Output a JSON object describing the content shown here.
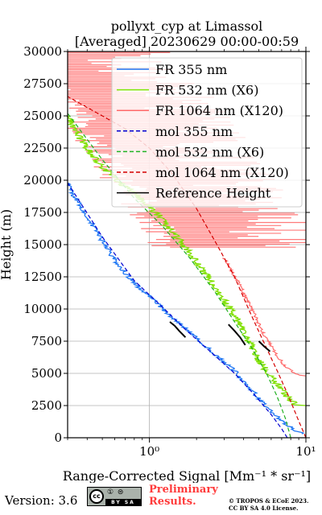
{
  "chart_data": {
    "type": "line",
    "title": "pollyxt_cyp at Limassol",
    "subtitle": "[Averaged] 20230629 00:00-00:59",
    "xlabel": "Range-Corrected Signal [Mm⁻¹ * sr⁻¹]",
    "ylabel": "Height (m)",
    "xscale": "log",
    "xlim": [
      0.3,
      10
    ],
    "ylim": [
      0,
      30000
    ],
    "x_ticks": [
      "10⁰",
      "10¹"
    ],
    "y_ticks": [
      "0",
      "2500",
      "5000",
      "7500",
      "10000",
      "12500",
      "15000",
      "17500",
      "20000",
      "22500",
      "25000",
      "27500",
      "30000"
    ],
    "grid": true,
    "legend_position": "upper right",
    "series": [
      {
        "name": "FR 355 nm",
        "color": "#1f77f4",
        "style": "solid",
        "points": [
          [
            0.3,
            19800
          ],
          [
            0.32,
            19000
          ],
          [
            0.35,
            18300
          ],
          [
            0.4,
            17200
          ],
          [
            0.5,
            15300
          ],
          [
            0.6,
            13800
          ],
          [
            0.8,
            12000
          ],
          [
            1.0,
            11000
          ],
          [
            1.3,
            9700
          ],
          [
            1.7,
            8500
          ],
          [
            2.2,
            7300
          ],
          [
            2.8,
            6200
          ],
          [
            3.5,
            5200
          ],
          [
            4.3,
            4000
          ],
          [
            5.2,
            2800
          ],
          [
            6.3,
            1800
          ],
          [
            7.5,
            1000
          ],
          [
            8.5,
            600
          ],
          [
            9.5,
            300
          ]
        ]
      },
      {
        "name": "FR 532 nm (X6)",
        "color": "#7fe000",
        "style": "solid",
        "points": [
          [
            0.3,
            25000
          ],
          [
            0.33,
            24000
          ],
          [
            0.4,
            22500
          ],
          [
            0.5,
            21000
          ],
          [
            0.7,
            19500
          ],
          [
            0.9,
            18500
          ],
          [
            1.1,
            17500
          ],
          [
            1.4,
            16000
          ],
          [
            1.7,
            14800
          ],
          [
            2.1,
            13300
          ],
          [
            2.6,
            11800
          ],
          [
            3.2,
            10200
          ],
          [
            3.8,
            8800
          ],
          [
            4.4,
            7300
          ],
          [
            5.0,
            6000
          ],
          [
            5.8,
            5000
          ],
          [
            6.8,
            4000
          ],
          [
            7.6,
            3200
          ],
          [
            8.5,
            2600
          ],
          [
            9.8,
            2500
          ]
        ]
      },
      {
        "name": "FR 1064 nm (X120)",
        "color": "#ff6b6b",
        "style": "solid",
        "points": [
          [
            0.3,
            29500
          ],
          [
            0.4,
            28000
          ],
          [
            0.55,
            26500
          ],
          [
            0.7,
            25000
          ],
          [
            0.9,
            23500
          ],
          [
            1.1,
            22000
          ],
          [
            1.4,
            20000
          ],
          [
            1.8,
            18200
          ],
          [
            2.3,
            16200
          ],
          [
            3.0,
            14000
          ],
          [
            3.8,
            11800
          ],
          [
            4.6,
            9800
          ],
          [
            5.3,
            8200
          ],
          [
            6.2,
            6800
          ],
          [
            7.3,
            5600
          ],
          [
            8.8,
            4900
          ],
          [
            10,
            4800
          ]
        ]
      },
      {
        "name": "mol 355 nm",
        "color": "#0000d0",
        "style": "dashed",
        "points": [
          [
            0.3,
            19800
          ],
          [
            0.5,
            15600
          ],
          [
            0.8,
            12200
          ],
          [
            1.2,
            10200
          ],
          [
            1.7,
            8400
          ],
          [
            2.5,
            6600
          ],
          [
            3.5,
            5000
          ],
          [
            4.8,
            3200
          ],
          [
            6.0,
            1800
          ],
          [
            7.0,
            700
          ],
          [
            7.6,
            0
          ]
        ]
      },
      {
        "name": "mol 532 nm (X6)",
        "color": "#20b020",
        "style": "dashed",
        "points": [
          [
            0.3,
            25200
          ],
          [
            0.5,
            21600
          ],
          [
            0.8,
            18600
          ],
          [
            1.2,
            16500
          ],
          [
            1.8,
            14000
          ],
          [
            2.6,
            11400
          ],
          [
            3.5,
            9000
          ],
          [
            4.5,
            7000
          ],
          [
            5.6,
            5000
          ],
          [
            6.5,
            3300
          ],
          [
            7.4,
            1500
          ],
          [
            8.0,
            0
          ]
        ]
      },
      {
        "name": "mol 1064 nm (X120)",
        "color": "#d40000",
        "style": "dashed",
        "points": [
          [
            0.3,
            26500
          ],
          [
            0.5,
            25000
          ],
          [
            0.7,
            24000
          ],
          [
            1.0,
            22500
          ],
          [
            1.4,
            20500
          ],
          [
            2.0,
            17800
          ],
          [
            2.7,
            15000
          ],
          [
            3.5,
            12500
          ],
          [
            4.3,
            10000
          ],
          [
            5.2,
            7800
          ],
          [
            6.5,
            5300
          ],
          [
            7.7,
            3300
          ],
          [
            9.0,
            1300
          ],
          [
            10,
            0
          ]
        ]
      },
      {
        "name": "Reference Height",
        "color": "#000000",
        "style": "solid",
        "segments": [
          [
            [
              1.35,
              9000
            ],
            [
              1.45,
              8700
            ],
            [
              1.55,
              8300
            ],
            [
              1.7,
              7800
            ]
          ],
          [
            [
              3.2,
              8800
            ],
            [
              3.5,
              8300
            ],
            [
              3.8,
              7800
            ],
            [
              4.1,
              7200
            ]
          ],
          [
            [
              5.0,
              7500
            ],
            [
              5.4,
              7100
            ],
            [
              5.9,
              6700
            ]
          ]
        ]
      }
    ]
  },
  "footer": {
    "version": "Version: 3.6",
    "cc_logo": "cc",
    "cc_icons": "① ⊜",
    "cc_text": "BY SA",
    "preliminary_line1": "Preliminary",
    "preliminary_line2": "Results.",
    "copyright_line1": "© TROPOS & ECoE 2023.",
    "copyright_line2": "CC BY SA 4.0 License."
  }
}
